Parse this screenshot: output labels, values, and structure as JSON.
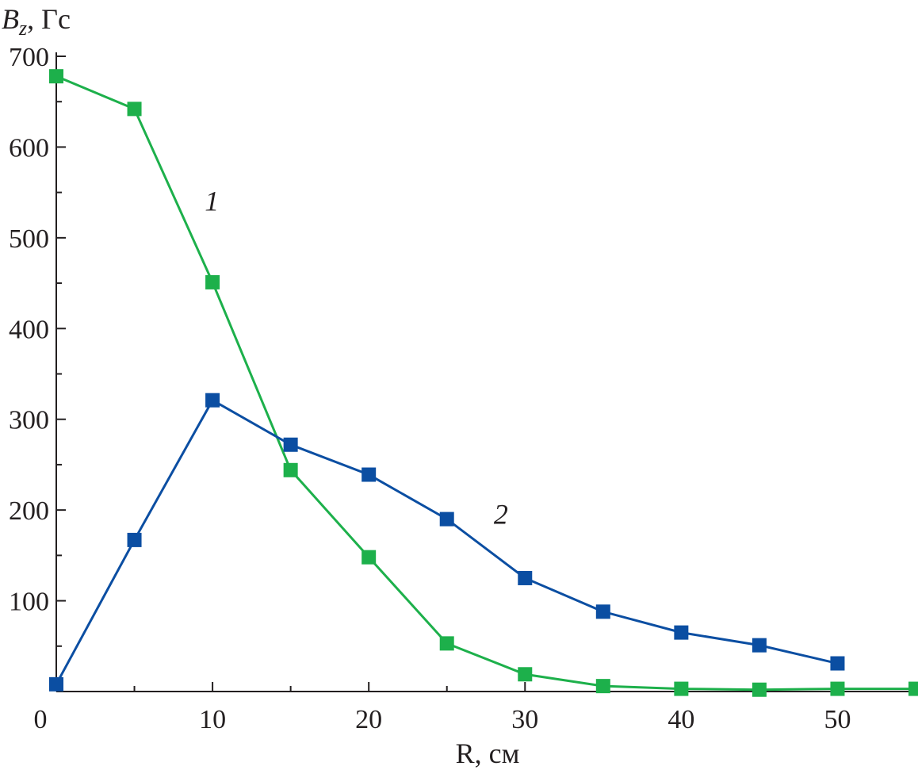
{
  "chart_data": {
    "type": "line",
    "xlabel": "R, см",
    "ylabel_main": "B",
    "ylabel_sub": "z",
    "ylabel_unit": ", Гс",
    "xlim": [
      0,
      55
    ],
    "ylim": [
      0,
      700
    ],
    "xticks": [
      0,
      10,
      20,
      30,
      40,
      50
    ],
    "yticks": [
      100,
      200,
      300,
      400,
      500,
      600,
      700
    ],
    "grid": false,
    "series": [
      {
        "label": "1",
        "color": "#1db04b",
        "x": [
          0,
          5,
          10,
          15,
          20,
          25,
          30,
          35,
          40,
          45,
          50,
          55
        ],
        "y": [
          678,
          642,
          451,
          244,
          148,
          53,
          19,
          6,
          3,
          2,
          3,
          3
        ],
        "label_at": [
          9.5,
          530
        ]
      },
      {
        "label": "2",
        "color": "#0b4ea2",
        "x": [
          0,
          5,
          10,
          15,
          20,
          25,
          30,
          35,
          40,
          45,
          50
        ],
        "y": [
          8,
          167,
          321,
          272,
          239,
          190,
          125,
          88,
          65,
          51,
          31
        ],
        "label_at": [
          28,
          185
        ]
      }
    ]
  }
}
